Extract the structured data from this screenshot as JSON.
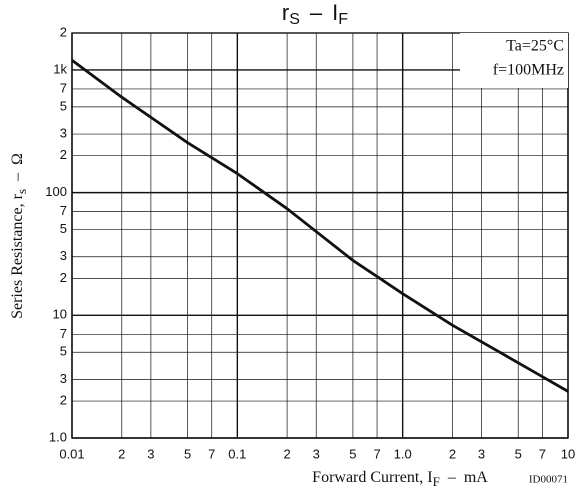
{
  "chart_data": {
    "type": "line",
    "title": [
      "r",
      "S",
      "–",
      "I",
      "F"
    ],
    "x_label": [
      "Forward Current, I",
      "F",
      "–",
      "mA"
    ],
    "y_label": [
      "Series Resistance, r",
      "s",
      "–",
      "Ω"
    ],
    "annotations": [
      "Ta=25°C",
      "f=100MHz"
    ],
    "figure_id": "ID00071",
    "x": [
      0.01,
      0.02,
      0.05,
      0.1,
      0.2,
      0.5,
      1,
      2,
      5,
      10
    ],
    "values": [
      1200,
      600,
      255,
      143,
      74,
      28,
      15,
      8.3,
      4.1,
      2.4
    ],
    "color": "#111111",
    "log_x": true,
    "log_y": true,
    "grid": true,
    "xlim": [
      0.01,
      10
    ],
    "ylim": [
      1,
      2000
    ],
    "xticks": [
      0.01,
      {
        "value": 0.02,
        "label": "2"
      },
      {
        "value": 0.03,
        "label": "3"
      },
      {
        "value": 0.05,
        "label": "5"
      },
      {
        "value": 0.07,
        "label": "7"
      },
      0.1,
      {
        "value": 0.2,
        "label": "2"
      },
      {
        "value": 0.3,
        "label": "3"
      },
      {
        "value": 0.5,
        "label": "5"
      },
      {
        "value": 0.7,
        "label": "7"
      },
      {
        "value": 1,
        "label": "1.0"
      },
      {
        "value": 2,
        "label": "2"
      },
      {
        "value": 3,
        "label": "3"
      },
      {
        "value": 5,
        "label": "5"
      },
      {
        "value": 7,
        "label": "7"
      },
      10
    ],
    "yticks": [
      {
        "value": 1,
        "label": "1.0"
      },
      2,
      3,
      5,
      7,
      10,
      {
        "value": 20,
        "label": "2"
      },
      {
        "value": 30,
        "label": "3"
      },
      {
        "value": 50,
        "label": "5"
      },
      {
        "value": 70,
        "label": "7"
      },
      100,
      {
        "value": 200,
        "label": "2"
      },
      {
        "value": 300,
        "label": "3"
      },
      {
        "value": 500,
        "label": "5"
      },
      {
        "value": 700,
        "label": "7"
      },
      {
        "value": 1000,
        "label": "1k"
      },
      {
        "value": 2000,
        "label": "2"
      }
    ]
  }
}
